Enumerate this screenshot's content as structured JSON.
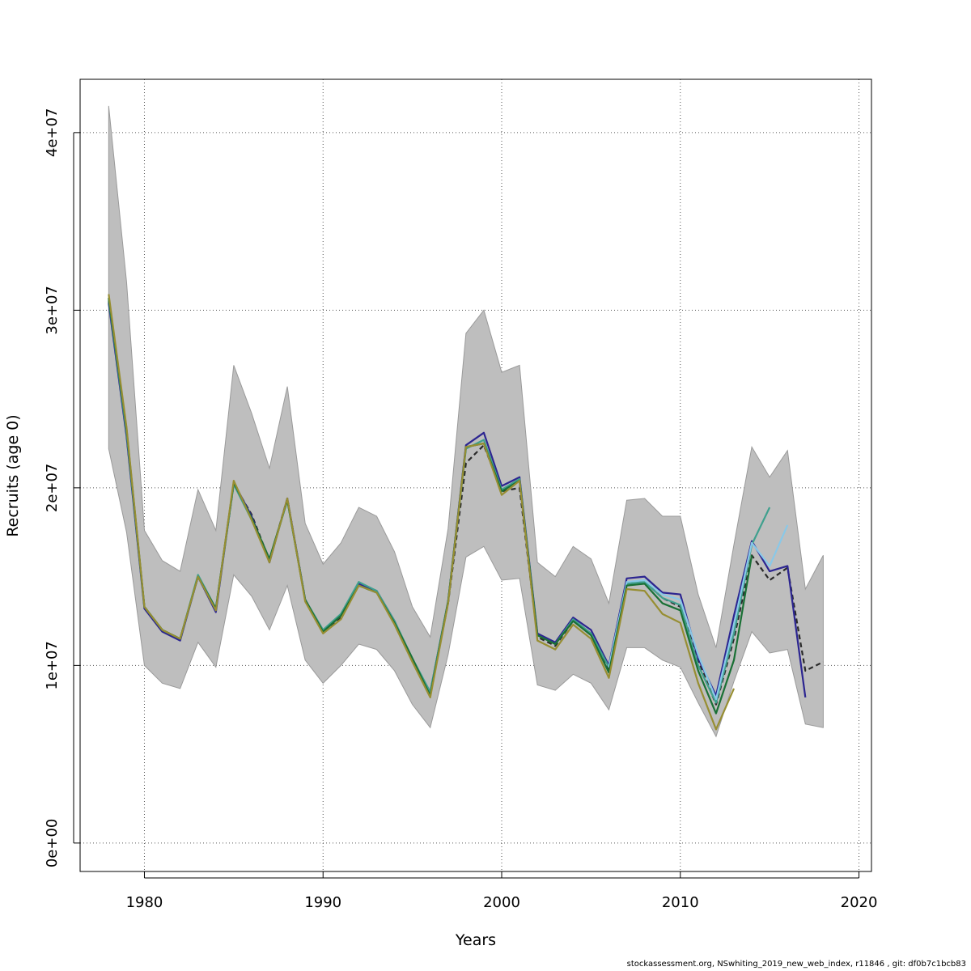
{
  "chart_data": {
    "type": "line",
    "title": "",
    "xlabel": "Years",
    "ylabel": "Recruits (age 0)",
    "xlim": [
      1976.4,
      2020.7
    ],
    "ylim": [
      -1600000,
      43000000
    ],
    "xticks": [
      1980,
      1990,
      2000,
      2010,
      2020
    ],
    "xtick_labels": [
      "1980",
      "1990",
      "2000",
      "2010",
      "2020"
    ],
    "yticks": [
      0,
      10000000,
      20000000,
      30000000,
      40000000
    ],
    "ytick_labels": [
      "0e+00",
      "1e+07",
      "2e+07",
      "3e+07",
      "4e+07"
    ],
    "grid": true,
    "band": {
      "color": "#bebebe",
      "x": [
        1978,
        1979,
        1980,
        1981,
        1982,
        1983,
        1984,
        1985,
        1986,
        1987,
        1988,
        1989,
        1990,
        1991,
        1992,
        1993,
        1994,
        1995,
        1996,
        1997,
        1998,
        1999,
        2000,
        2001,
        2002,
        2003,
        2004,
        2005,
        2006,
        2007,
        2008,
        2009,
        2010,
        2011,
        2012,
        2013,
        2014,
        2015,
        2016,
        2017,
        2018
      ],
      "upper": [
        41500000,
        31600000,
        17600000,
        15900000,
        15300000,
        19900000,
        17600000,
        26900000,
        24200000,
        21100000,
        25700000,
        18000000,
        15700000,
        16900000,
        18900000,
        18400000,
        16400000,
        13300000,
        11600000,
        17700000,
        28700000,
        30000000,
        26500000,
        26900000,
        15800000,
        15000000,
        16700000,
        16000000,
        13500000,
        19300000,
        19400000,
        18400000,
        18400000,
        14000000,
        11000000,
        16800000,
        22300000,
        20600000,
        22100000,
        14300000,
        16200000
      ],
      "lower": [
        22200000,
        17500000,
        10000000,
        9000000,
        8700000,
        11300000,
        9900000,
        15100000,
        13900000,
        12000000,
        14500000,
        10300000,
        9000000,
        10000000,
        11200000,
        10900000,
        9700000,
        7800000,
        6500000,
        10600000,
        16100000,
        16700000,
        14800000,
        14900000,
        8900000,
        8600000,
        9500000,
        9000000,
        7500000,
        11000000,
        11000000,
        10300000,
        9900000,
        7900000,
        6000000,
        9100000,
        11900000,
        10700000,
        10900000,
        6700000,
        6500000
      ]
    },
    "series": [
      {
        "color": "#2a2a2a",
        "dash": "6,4",
        "x": [
          1978,
          1979,
          1980,
          1981,
          1982,
          1983,
          1984,
          1985,
          1986,
          1987,
          1988,
          1989,
          1990,
          1991,
          1992,
          1993,
          1994,
          1995,
          1996,
          1997,
          1998,
          1999,
          2000,
          2001,
          2002,
          2003,
          2004,
          2005,
          2006,
          2007,
          2008,
          2009,
          2010,
          2011,
          2012,
          2013,
          2014,
          2015,
          2016,
          2017,
          2018
        ],
        "y": [
          30500000,
          23000000,
          13300000,
          12000000,
          11500000,
          15000000,
          13200000,
          20200000,
          18500000,
          15900000,
          19400000,
          13700000,
          11900000,
          12700000,
          14500000,
          14100000,
          12400000,
          10300000,
          8400000,
          13500000,
          21400000,
          22400000,
          19800000,
          20000000,
          11600000,
          11100000,
          12500000,
          11800000,
          9700000,
          14600000,
          14700000,
          13800000,
          13300000,
          10300000,
          7800000,
          11500000,
          16200000,
          14800000,
          15500000,
          9700000,
          10200000
        ]
      },
      {
        "color": "#2c2591",
        "dash": "",
        "x": [
          1978,
          1979,
          1980,
          1981,
          1982,
          1983,
          1984,
          1985,
          1986,
          1987,
          1988,
          1989,
          1990,
          1991,
          1992,
          1993,
          1994,
          1995,
          1996,
          1997,
          1998,
          1999,
          2000,
          2001,
          2002,
          2003,
          2004,
          2005,
          2006,
          2007,
          2008,
          2009,
          2010,
          2011,
          2012,
          2013,
          2014,
          2015,
          2016,
          2017
        ],
        "y": [
          30400000,
          22900000,
          13200000,
          11900000,
          11400000,
          15000000,
          13000000,
          20300000,
          18400000,
          15800000,
          19400000,
          13700000,
          11900000,
          12800000,
          14600000,
          14200000,
          12500000,
          10300000,
          8500000,
          13600000,
          22400000,
          23100000,
          20100000,
          20600000,
          11800000,
          11300000,
          12700000,
          12000000,
          10000000,
          14900000,
          15000000,
          14100000,
          14000000,
          10400000,
          8300000,
          12800000,
          17000000,
          15300000,
          15600000,
          8200000
        ]
      },
      {
        "color": "#3fa08e",
        "dash": "",
        "x": [
          1978,
          1979,
          1980,
          1981,
          1982,
          1983,
          1984,
          1985,
          1986,
          1987,
          1988,
          1989,
          1990,
          1991,
          1992,
          1993,
          1994,
          1995,
          1996,
          1997,
          1998,
          1999,
          2000,
          2001,
          2002,
          2003,
          2004,
          2005,
          2006,
          2007,
          2008,
          2009,
          2010,
          2011,
          2012,
          2013,
          2014,
          2015
        ],
        "y": [
          30600000,
          23100000,
          13300000,
          12000000,
          11500000,
          15100000,
          13200000,
          20200000,
          18200000,
          15900000,
          19300000,
          13700000,
          12000000,
          12900000,
          14700000,
          14200000,
          12500000,
          10400000,
          8500000,
          13600000,
          22200000,
          22700000,
          19900000,
          20500000,
          11700000,
          11200000,
          12600000,
          11800000,
          9900000,
          14600000,
          14700000,
          13800000,
          13400000,
          10000000,
          7900000,
          11800000,
          16800000,
          18900000
        ]
      },
      {
        "color": "#89c8e8",
        "dash": "",
        "x": [
          2006,
          2007,
          2008,
          2009,
          2010,
          2011,
          2012,
          2013,
          2014,
          2015,
          2016
        ],
        "y": [
          9900000,
          14700000,
          14800000,
          14000000,
          13700000,
          10600000,
          8100000,
          12300000,
          16900000,
          15600000,
          17900000
        ]
      },
      {
        "color": "#1a7035",
        "dash": "",
        "x": [
          1978,
          1979,
          1980,
          1981,
          1982,
          1983,
          1984,
          1985,
          1986,
          1987,
          1988,
          1989,
          1990,
          1991,
          1992,
          1993,
          1994,
          1995,
          1996,
          1997,
          1998,
          1999,
          2000,
          2001,
          2002,
          2003,
          2004,
          2005,
          2006,
          2007,
          2008,
          2009,
          2010,
          2011,
          2012,
          2013,
          2014
        ],
        "y": [
          30700000,
          23300000,
          13300000,
          12000000,
          11500000,
          15000000,
          13200000,
          20300000,
          18300000,
          16000000,
          19300000,
          13700000,
          11900000,
          12800000,
          14500000,
          14100000,
          12400000,
          10400000,
          8300000,
          13600000,
          22300000,
          22500000,
          19800000,
          20400000,
          11700000,
          11200000,
          12500000,
          11700000,
          9600000,
          14500000,
          14600000,
          13500000,
          13100000,
          9700000,
          7300000,
          10300000,
          16200000
        ]
      },
      {
        "color": "#978e32",
        "dash": "",
        "x": [
          1978,
          1979,
          1980,
          1981,
          1982,
          1983,
          1984,
          1985,
          1986,
          1987,
          1988,
          1989,
          1990,
          1991,
          1992,
          1993,
          1994,
          1995,
          1996,
          1997,
          1998,
          1999,
          2000,
          2001,
          2002,
          2003,
          2004,
          2005,
          2006,
          2007,
          2008,
          2009,
          2010,
          2011,
          2012,
          2013
        ],
        "y": [
          30900000,
          23400000,
          13300000,
          12000000,
          11500000,
          15000000,
          13100000,
          20400000,
          18200000,
          15800000,
          19400000,
          13600000,
          11800000,
          12600000,
          14500000,
          14100000,
          12300000,
          10200000,
          8200000,
          13500000,
          22300000,
          22500000,
          19600000,
          20400000,
          11400000,
          10900000,
          12300000,
          11500000,
          9300000,
          14300000,
          14200000,
          12900000,
          12400000,
          9000000,
          6400000,
          8700000
        ]
      }
    ]
  },
  "footer": "stockassessment.org, NSwhiting_2019_new_web_index, r11846 , git: df0b7c1bcb83"
}
